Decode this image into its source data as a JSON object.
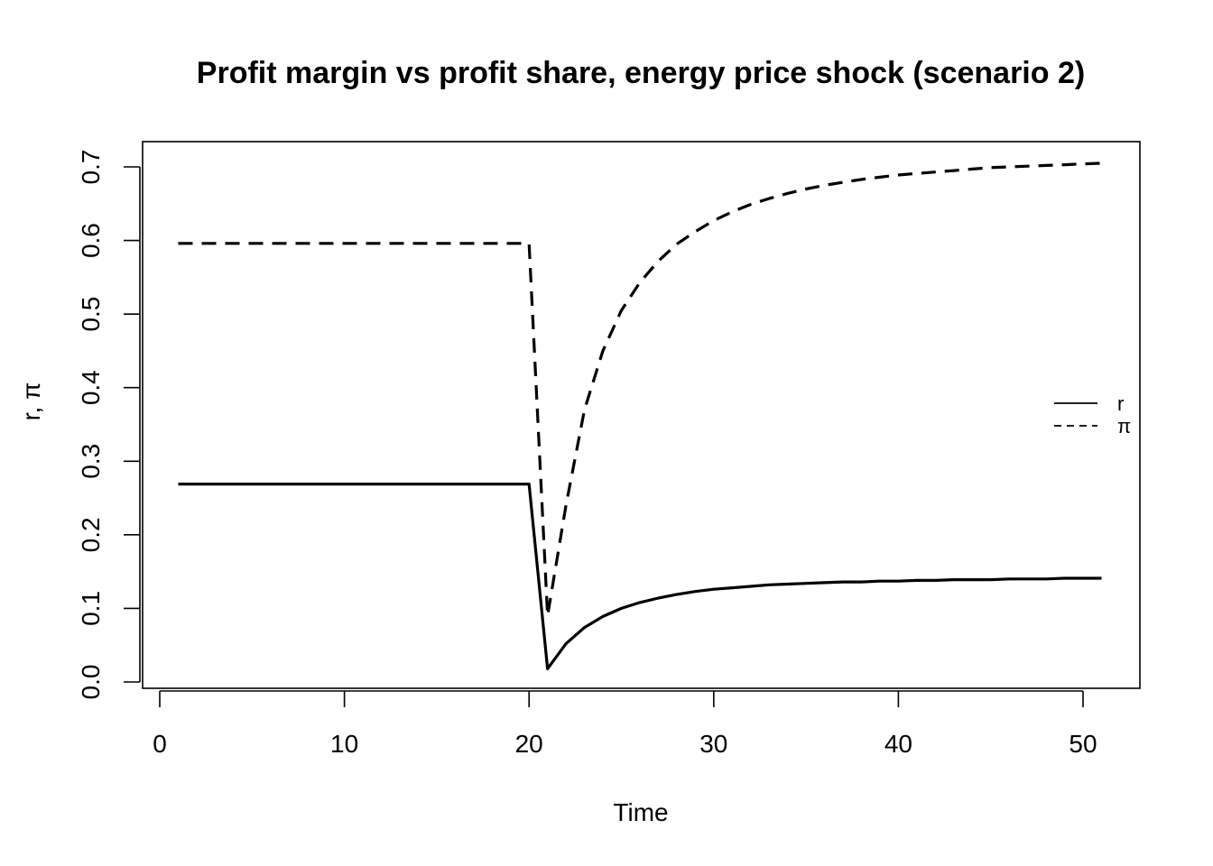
{
  "chart_data": {
    "type": "line",
    "title": "Profit margin vs profit share, energy price shock (scenario 2)",
    "xlabel": "Time",
    "ylabel": "r, π",
    "xlim": [
      0,
      52
    ],
    "ylim": [
      0,
      0.72
    ],
    "x_ticks": [
      0,
      10,
      20,
      30,
      40,
      50
    ],
    "x_tick_labels": [
      "0",
      "10",
      "20",
      "30",
      "40",
      "50"
    ],
    "y_ticks": [
      0.0,
      0.1,
      0.2,
      0.3,
      0.4,
      0.5,
      0.6,
      0.7
    ],
    "y_tick_labels": [
      "0.0",
      "0.1",
      "0.2",
      "0.3",
      "0.4",
      "0.5",
      "0.6",
      "0.7"
    ],
    "grid": false,
    "legend_position": "right",
    "x": [
      1,
      2,
      3,
      4,
      5,
      6,
      7,
      8,
      9,
      10,
      11,
      12,
      13,
      14,
      15,
      16,
      17,
      18,
      19,
      20,
      21,
      22,
      23,
      24,
      25,
      26,
      27,
      28,
      29,
      30,
      31,
      32,
      33,
      34,
      35,
      36,
      37,
      38,
      39,
      40,
      41,
      42,
      43,
      44,
      45,
      46,
      47,
      48,
      49,
      50,
      51
    ],
    "series": [
      {
        "name": "r",
        "line_style": "solid",
        "color": "#000000",
        "values": [
          0.269,
          0.269,
          0.269,
          0.269,
          0.269,
          0.269,
          0.269,
          0.269,
          0.269,
          0.269,
          0.269,
          0.269,
          0.269,
          0.269,
          0.269,
          0.269,
          0.269,
          0.269,
          0.269,
          0.269,
          0.018,
          0.052,
          0.074,
          0.089,
          0.1,
          0.108,
          0.114,
          0.119,
          0.123,
          0.126,
          0.128,
          0.13,
          0.132,
          0.133,
          0.134,
          0.135,
          0.136,
          0.136,
          0.137,
          0.137,
          0.138,
          0.138,
          0.139,
          0.139,
          0.139,
          0.14,
          0.14,
          0.14,
          0.141,
          0.141,
          0.141
        ]
      },
      {
        "name": "π",
        "line_style": "dashed",
        "color": "#000000",
        "values": [
          0.596,
          0.596,
          0.596,
          0.596,
          0.596,
          0.596,
          0.596,
          0.596,
          0.596,
          0.596,
          0.596,
          0.596,
          0.596,
          0.596,
          0.596,
          0.596,
          0.596,
          0.596,
          0.596,
          0.596,
          0.09,
          0.24,
          0.37,
          0.45,
          0.505,
          0.543,
          0.572,
          0.595,
          0.612,
          0.627,
          0.639,
          0.649,
          0.657,
          0.664,
          0.67,
          0.675,
          0.679,
          0.683,
          0.686,
          0.689,
          0.691,
          0.693,
          0.695,
          0.697,
          0.699,
          0.7,
          0.701,
          0.702,
          0.703,
          0.704,
          0.705
        ]
      }
    ]
  }
}
